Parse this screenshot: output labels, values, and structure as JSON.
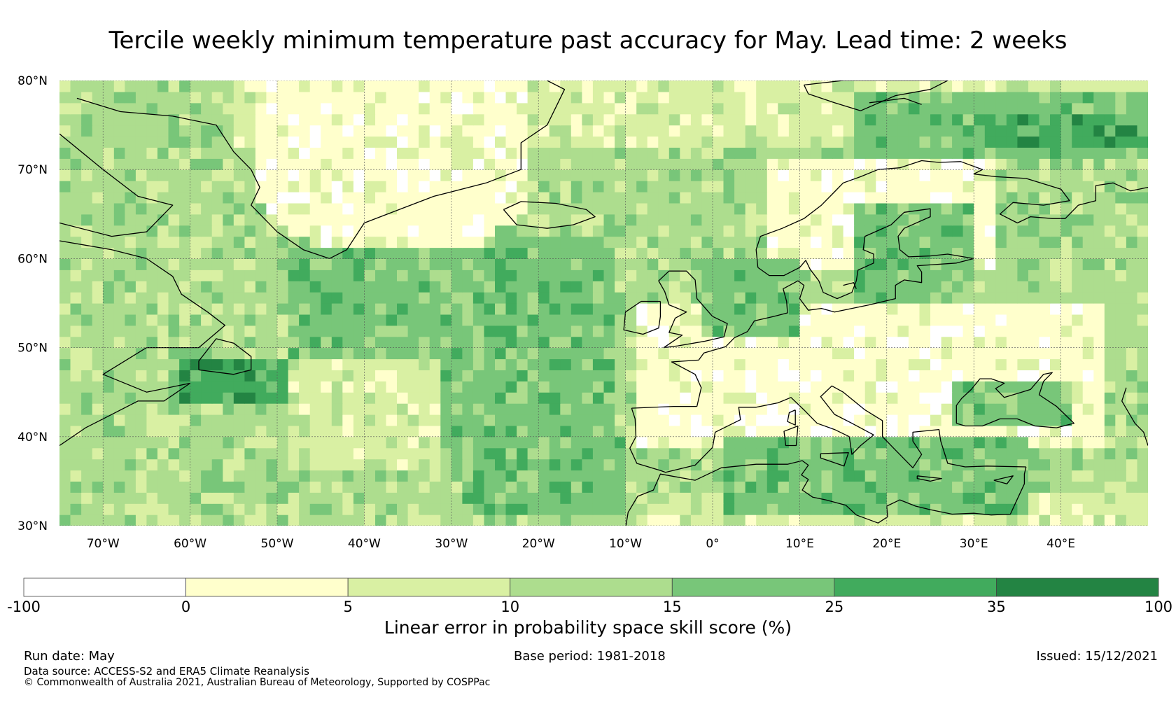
{
  "title": "Tercile weekly minimum temperature past accuracy for May. Lead time: 2 weeks",
  "map": {
    "lat_range": [
      30,
      80
    ],
    "lon_range": [
      -75,
      50
    ],
    "lat_labels": [
      {
        "lat": 80,
        "text": "80°N"
      },
      {
        "lat": 70,
        "text": "70°N"
      },
      {
        "lat": 60,
        "text": "60°N"
      },
      {
        "lat": 50,
        "text": "50°N"
      },
      {
        "lat": 40,
        "text": "40°N"
      },
      {
        "lat": 30,
        "text": "30°N"
      }
    ],
    "lon_labels": [
      {
        "lon": -70,
        "text": "70°W"
      },
      {
        "lon": -60,
        "text": "60°W"
      },
      {
        "lon": -50,
        "text": "50°W"
      },
      {
        "lon": -40,
        "text": "40°W"
      },
      {
        "lon": -30,
        "text": "30°W"
      },
      {
        "lon": -20,
        "text": "20°W"
      },
      {
        "lon": -10,
        "text": "10°W"
      },
      {
        "lon": 0,
        "text": "0°"
      },
      {
        "lon": 10,
        "text": "10°E"
      },
      {
        "lon": 20,
        "text": "20°E"
      },
      {
        "lon": 30,
        "text": "30°E"
      },
      {
        "lon": 40,
        "text": "40°E"
      }
    ],
    "gridlines": true
  },
  "colorbar": {
    "label": "Linear error in probability space skill score (%)",
    "ticks": [
      "-100",
      "0",
      "5",
      "10",
      "15",
      "25",
      "35",
      "100"
    ],
    "colors": [
      "#ffffff",
      "#ffffcc",
      "#d9f0a3",
      "#addd8e",
      "#78c679",
      "#41ab5d",
      "#238443"
    ]
  },
  "footer": {
    "run_date": "Run date: May",
    "base_period": "Base period: 1981-2018",
    "issued": "Issued: 15/12/2021",
    "source": "Data source: ACCESS-S2 and ERA5 Climate Reanalysis",
    "copyright": "© Commonwealth of Australia 2021, Australian Bureau of Meteorology, Supported by COSPPac"
  }
}
